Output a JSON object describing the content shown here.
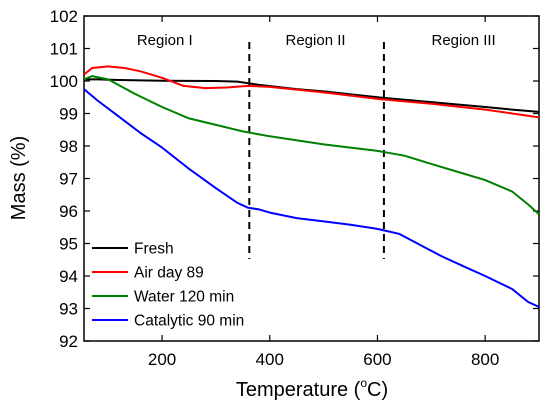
{
  "chart_data": {
    "type": "line",
    "xlabel_main": "Temperature (",
    "xlabel_sup": "o",
    "xlabel_tail": "C)",
    "ylabel": "Mass (%)",
    "xlim": [
      55,
      900
    ],
    "ylim": [
      92,
      102
    ],
    "x_ticks": [
      200,
      400,
      600,
      800
    ],
    "y_ticks": [
      92,
      93,
      94,
      95,
      96,
      97,
      98,
      99,
      100,
      101,
      102
    ],
    "grid": false,
    "legend_position": "bottom-left",
    "regions": [
      {
        "label": "Region I",
        "x_center": 205
      },
      {
        "label": "Region II",
        "x_center": 485
      },
      {
        "label": "Region III",
        "x_center": 760
      }
    ],
    "region_dividers_x": [
      362,
      612
    ],
    "series": [
      {
        "name": "Fresh",
        "color": "#000000",
        "x": [
          55,
          80,
          120,
          200,
          300,
          340,
          380,
          450,
          500,
          600,
          700,
          800,
          850,
          900
        ],
        "y": [
          100.05,
          100.05,
          100.03,
          100.01,
          100.0,
          99.98,
          99.88,
          99.75,
          99.68,
          99.5,
          99.35,
          99.2,
          99.12,
          99.05
        ]
      },
      {
        "name": "Air day 89",
        "color": "#ff0000",
        "x": [
          55,
          70,
          100,
          130,
          160,
          200,
          240,
          280,
          320,
          360,
          400,
          500,
          600,
          700,
          800,
          850,
          900
        ],
        "y": [
          100.2,
          100.4,
          100.45,
          100.4,
          100.3,
          100.1,
          99.85,
          99.78,
          99.8,
          99.85,
          99.82,
          99.65,
          99.45,
          99.3,
          99.12,
          99.0,
          98.88
        ]
      },
      {
        "name": "Water 120 min",
        "color": "#008000",
        "x": [
          55,
          70,
          100,
          150,
          200,
          250,
          300,
          350,
          400,
          500,
          600,
          650,
          700,
          750,
          800,
          850,
          880,
          900
        ],
        "y": [
          100.05,
          100.15,
          100.05,
          99.6,
          99.2,
          98.85,
          98.65,
          98.45,
          98.3,
          98.05,
          97.85,
          97.7,
          97.45,
          97.2,
          96.95,
          96.6,
          96.2,
          95.9
        ]
      },
      {
        "name": "Catalytic 90 min",
        "color": "#0000ff",
        "x": [
          55,
          80,
          120,
          160,
          200,
          250,
          300,
          340,
          360,
          380,
          400,
          450,
          500,
          550,
          600,
          640,
          680,
          720,
          760,
          800,
          850,
          880,
          900
        ],
        "y": [
          99.75,
          99.4,
          98.9,
          98.4,
          97.95,
          97.3,
          96.7,
          96.25,
          96.1,
          96.05,
          95.95,
          95.78,
          95.68,
          95.58,
          95.45,
          95.3,
          94.95,
          94.6,
          94.3,
          94.0,
          93.6,
          93.2,
          93.05
        ]
      }
    ]
  }
}
